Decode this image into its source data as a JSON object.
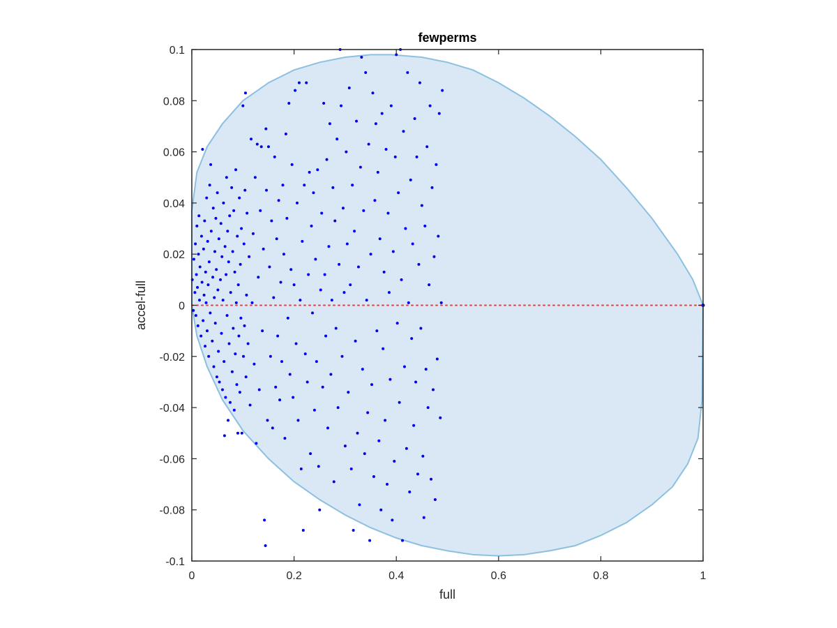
{
  "chart_data": {
    "type": "scatter",
    "title": "fewperms",
    "xlabel": "full",
    "ylabel": "accel-full",
    "xlim": [
      0,
      1
    ],
    "ylim": [
      -0.1,
      0.1
    ],
    "x_ticks": [
      0,
      0.2,
      0.4,
      0.6,
      0.8,
      1
    ],
    "x_tick_labels": [
      "0",
      "0.2",
      "0.4",
      "0.6",
      "0.8",
      "1"
    ],
    "y_ticks": [
      -0.1,
      -0.08,
      -0.06,
      -0.04,
      -0.02,
      0,
      0.02,
      0.04,
      0.06,
      0.08,
      0.1
    ],
    "y_tick_labels": [
      "-0.1",
      "-0.08",
      "-0.06",
      "-0.04",
      "-0.02",
      "0",
      "0.02",
      "0.04",
      "0.06",
      "0.08",
      "0.1"
    ],
    "grid": false,
    "legend": "none",
    "colors": {
      "points": "#0000ee",
      "region_fill": "#d9e8f4",
      "region_stroke": "#8cc0e0",
      "reference_line": "#ff3333",
      "axes": "#262626"
    },
    "reference_line": {
      "y": 0,
      "style": "dotted"
    },
    "region_boundary": [
      [
        0,
        0.037
      ],
      [
        0.01,
        0.052
      ],
      [
        0.03,
        0.062
      ],
      [
        0.06,
        0.071
      ],
      [
        0.1,
        0.08
      ],
      [
        0.15,
        0.087
      ],
      [
        0.2,
        0.092
      ],
      [
        0.25,
        0.095
      ],
      [
        0.3,
        0.097
      ],
      [
        0.35,
        0.098
      ],
      [
        0.39,
        0.098
      ],
      [
        0.45,
        0.097
      ],
      [
        0.5,
        0.095
      ],
      [
        0.55,
        0.092
      ],
      [
        0.6,
        0.087
      ],
      [
        0.65,
        0.081
      ],
      [
        0.7,
        0.074
      ],
      [
        0.75,
        0.066
      ],
      [
        0.8,
        0.057
      ],
      [
        0.85,
        0.046
      ],
      [
        0.9,
        0.034
      ],
      [
        0.95,
        0.02
      ],
      [
        0.98,
        0.01
      ],
      [
        1,
        0
      ],
      [
        0.998,
        -0.037
      ],
      [
        0.99,
        -0.052
      ],
      [
        0.97,
        -0.062
      ],
      [
        0.94,
        -0.071
      ],
      [
        0.9,
        -0.078
      ],
      [
        0.85,
        -0.085
      ],
      [
        0.8,
        -0.09
      ],
      [
        0.75,
        -0.094
      ],
      [
        0.7,
        -0.096
      ],
      [
        0.65,
        -0.0975
      ],
      [
        0.6,
        -0.098
      ],
      [
        0.55,
        -0.0975
      ],
      [
        0.5,
        -0.096
      ],
      [
        0.45,
        -0.094
      ],
      [
        0.4,
        -0.091
      ],
      [
        0.35,
        -0.087
      ],
      [
        0.3,
        -0.082
      ],
      [
        0.25,
        -0.076
      ],
      [
        0.2,
        -0.069
      ],
      [
        0.15,
        -0.06
      ],
      [
        0.1,
        -0.049
      ],
      [
        0.06,
        -0.037
      ],
      [
        0.03,
        -0.024
      ],
      [
        0.01,
        -0.012
      ],
      [
        0,
        0
      ]
    ],
    "points": [
      [
        0.001,
        0.01
      ],
      [
        0.003,
        -0.002
      ],
      [
        0.004,
        0.018
      ],
      [
        0.006,
        0.005
      ],
      [
        0.007,
        0.024
      ],
      [
        0.008,
        -0.004
      ],
      [
        0.009,
        0.012
      ],
      [
        0.01,
        0.031
      ],
      [
        0.011,
        0.007
      ],
      [
        0.012,
        -0.008
      ],
      [
        0.013,
        0.02
      ],
      [
        0.014,
        0.035
      ],
      [
        0.015,
        0.002
      ],
      [
        0.016,
        0.015
      ],
      [
        0.018,
        -0.012
      ],
      [
        0.019,
        0.027
      ],
      [
        0.02,
        0.009
      ],
      [
        0.021,
        0.061
      ],
      [
        0.022,
        -0.006
      ],
      [
        0.023,
        0.022
      ],
      [
        0.024,
        0.004
      ],
      [
        0.025,
        0.033
      ],
      [
        0.026,
        -0.016
      ],
      [
        0.027,
        0.013
      ],
      [
        0.028,
        0.001
      ],
      [
        0.029,
        0.042
      ],
      [
        0.03,
        -0.01
      ],
      [
        0.031,
        0.025
      ],
      [
        0.032,
        0.008
      ],
      [
        0.033,
        -0.02
      ],
      [
        0.034,
        0.017
      ],
      [
        0.035,
        0.047
      ],
      [
        0.036,
        -0.003
      ],
      [
        0.037,
        0.055
      ],
      [
        0.038,
        0.029
      ],
      [
        0.04,
        -0.014
      ],
      [
        0.041,
        0.011
      ],
      [
        0.042,
        0.038
      ],
      [
        0.043,
        -0.024
      ],
      [
        0.044,
        0.003
      ],
      [
        0.045,
        0.021
      ],
      [
        0.046,
        -0.007
      ],
      [
        0.047,
        0.034
      ],
      [
        0.048,
        0.014
      ],
      [
        0.049,
        -0.028
      ],
      [
        0.05,
        0.044
      ],
      [
        0.051,
        0.006
      ],
      [
        0.052,
        -0.018
      ],
      [
        0.053,
        0.026
      ],
      [
        0.054,
        -0.03
      ],
      [
        0.056,
        0.01
      ],
      [
        0.057,
        0.032
      ],
      [
        0.058,
        -0.011
      ],
      [
        0.059,
        0.019
      ],
      [
        0.06,
        -0.033
      ],
      [
        0.061,
        0.002
      ],
      [
        0.062,
        0.04
      ],
      [
        0.063,
        -0.022
      ],
      [
        0.064,
        -0.051
      ],
      [
        0.065,
        0.023
      ],
      [
        0.066,
        -0.036
      ],
      [
        0.067,
        0.012
      ],
      [
        0.068,
        0.05
      ],
      [
        0.069,
        -0.004
      ],
      [
        0.07,
        0.029
      ],
      [
        0.071,
        -0.045
      ],
      [
        0.072,
        0.017
      ],
      [
        0.073,
        -0.015
      ],
      [
        0.074,
        0.035
      ],
      [
        0.075,
        -0.038
      ],
      [
        0.076,
        0.005
      ],
      [
        0.078,
        0.046
      ],
      [
        0.079,
        -0.026
      ],
      [
        0.08,
        0.021
      ],
      [
        0.081,
        -0.009
      ],
      [
        0.082,
        0.037
      ],
      [
        0.083,
        -0.041
      ],
      [
        0.084,
        0.013
      ],
      [
        0.085,
        -0.019
      ],
      [
        0.086,
        0.053
      ],
      [
        0.087,
        0.001
      ],
      [
        0.088,
        -0.031
      ],
      [
        0.089,
        0.027
      ],
      [
        0.09,
        -0.05
      ],
      [
        0.091,
        0.008
      ],
      [
        0.092,
        -0.012
      ],
      [
        0.093,
        0.042
      ],
      [
        0.094,
        -0.034
      ],
      [
        0.095,
        0.016
      ],
      [
        0.096,
        -0.005
      ],
      [
        0.097,
        0.03
      ],
      [
        0.098,
        -0.05
      ],
      [
        0.1,
        0.078
      ],
      [
        0.101,
        -0.02
      ],
      [
        0.102,
        0.024
      ],
      [
        0.103,
        -0.008
      ],
      [
        0.104,
        0.045
      ],
      [
        0.105,
        0.083
      ],
      [
        0.106,
        -0.028
      ],
      [
        0.107,
        0.004
      ],
      [
        0.108,
        0.036
      ],
      [
        0.11,
        -0.015
      ],
      [
        0.112,
        0.019
      ],
      [
        0.114,
        -0.039
      ],
      [
        0.116,
        0.065
      ],
      [
        0.118,
        0.001
      ],
      [
        0.12,
        0.028
      ],
      [
        0.122,
        -0.023
      ],
      [
        0.124,
        0.05
      ],
      [
        0.126,
        -0.054
      ],
      [
        0.128,
        0.063
      ],
      [
        0.13,
        0.011
      ],
      [
        0.132,
        -0.033
      ],
      [
        0.134,
        0.037
      ],
      [
        0.136,
        0.062
      ],
      [
        0.138,
        -0.01
      ],
      [
        0.14,
        0.022
      ],
      [
        0.142,
        -0.084
      ],
      [
        0.144,
        -0.094
      ],
      [
        0.145,
        0.069
      ],
      [
        0.146,
        0.045
      ],
      [
        0.148,
        -0.045
      ],
      [
        0.15,
        0.062
      ],
      [
        0.152,
        0.015
      ],
      [
        0.154,
        -0.02
      ],
      [
        0.156,
        0.033
      ],
      [
        0.158,
        -0.048
      ],
      [
        0.16,
        0.003
      ],
      [
        0.162,
        0.058
      ],
      [
        0.164,
        -0.032
      ],
      [
        0.166,
        0.026
      ],
      [
        0.168,
        -0.012
      ],
      [
        0.17,
        0.041
      ],
      [
        0.172,
        -0.037
      ],
      [
        0.174,
        0.009
      ],
      [
        0.176,
        -0.022
      ],
      [
        0.178,
        0.047
      ],
      [
        0.18,
        0.02
      ],
      [
        0.182,
        -0.052
      ],
      [
        0.184,
        0.067
      ],
      [
        0.186,
        0.034
      ],
      [
        0.188,
        -0.005
      ],
      [
        0.19,
        0.079
      ],
      [
        0.192,
        -0.027
      ],
      [
        0.194,
        0.014
      ],
      [
        0.196,
        0.055
      ],
      [
        0.198,
        -0.036
      ],
      [
        0.2,
        0.008
      ],
      [
        0.202,
        0.084
      ],
      [
        0.204,
        -0.015
      ],
      [
        0.206,
        0.04
      ],
      [
        0.208,
        -0.045
      ],
      [
        0.21,
        0.087
      ],
      [
        0.212,
        0.002
      ],
      [
        0.214,
        -0.064
      ],
      [
        0.216,
        0.025
      ],
      [
        0.218,
        -0.088
      ],
      [
        0.22,
        0.047
      ],
      [
        0.222,
        -0.019
      ],
      [
        0.224,
        0.087
      ],
      [
        0.226,
        -0.03
      ],
      [
        0.228,
        0.012
      ],
      [
        0.23,
        0.052
      ],
      [
        0.232,
        -0.058
      ],
      [
        0.234,
        0.031
      ],
      [
        0.236,
        -0.003
      ],
      [
        0.238,
        0.044
      ],
      [
        0.24,
        -0.041
      ],
      [
        0.242,
        0.018
      ],
      [
        0.244,
        -0.022
      ],
      [
        0.246,
        0.053
      ],
      [
        0.248,
        -0.063
      ],
      [
        0.25,
        -0.08
      ],
      [
        0.252,
        0.006
      ],
      [
        0.254,
        0.036
      ],
      [
        0.256,
        -0.032
      ],
      [
        0.258,
        0.079
      ],
      [
        0.26,
        0.012
      ],
      [
        0.262,
        -0.012
      ],
      [
        0.264,
        0.057
      ],
      [
        0.266,
        -0.048
      ],
      [
        0.268,
        0.023
      ],
      [
        0.27,
        0.071
      ],
      [
        0.272,
        -0.027
      ],
      [
        0.274,
        0.002
      ],
      [
        0.276,
        0.046
      ],
      [
        0.278,
        -0.069
      ],
      [
        0.28,
        0.033
      ],
      [
        0.282,
        -0.009
      ],
      [
        0.284,
        0.065
      ],
      [
        0.286,
        -0.04
      ],
      [
        0.288,
        0.016
      ],
      [
        0.29,
        0.1
      ],
      [
        0.292,
        0.078
      ],
      [
        0.294,
        -0.02
      ],
      [
        0.296,
        0.038
      ],
      [
        0.298,
        0.005
      ],
      [
        0.3,
        -0.055
      ],
      [
        0.302,
        0.06
      ],
      [
        0.304,
        0.024
      ],
      [
        0.306,
        -0.034
      ],
      [
        0.308,
        0.085
      ],
      [
        0.31,
        0.008
      ],
      [
        0.312,
        -0.064
      ],
      [
        0.314,
        0.047
      ],
      [
        0.316,
        -0.088
      ],
      [
        0.318,
        0.029
      ],
      [
        0.32,
        -0.014
      ],
      [
        0.322,
        0.072
      ],
      [
        0.324,
        -0.05
      ],
      [
        0.326,
        0.015
      ],
      [
        0.328,
        -0.078
      ],
      [
        0.33,
        0.054
      ],
      [
        0.332,
        0.097
      ],
      [
        0.334,
        -0.025
      ],
      [
        0.336,
        0.037
      ],
      [
        0.338,
        -0.058
      ],
      [
        0.34,
        0.091
      ],
      [
        0.342,
        0.002
      ],
      [
        0.344,
        -0.042
      ],
      [
        0.346,
        0.063
      ],
      [
        0.348,
        -0.092
      ],
      [
        0.35,
        0.02
      ],
      [
        0.352,
        -0.031
      ],
      [
        0.354,
        0.083
      ],
      [
        0.356,
        -0.067
      ],
      [
        0.358,
        0.041
      ],
      [
        0.36,
        0.071
      ],
      [
        0.362,
        -0.01
      ],
      [
        0.364,
        0.052
      ],
      [
        0.366,
        -0.053
      ],
      [
        0.368,
        0.026
      ],
      [
        0.37,
        -0.08
      ],
      [
        0.372,
        0.075
      ],
      [
        0.374,
        -0.017
      ],
      [
        0.376,
        0.013
      ],
      [
        0.378,
        -0.045
      ],
      [
        0.38,
        0.061
      ],
      [
        0.382,
        -0.07
      ],
      [
        0.384,
        0.036
      ],
      [
        0.386,
        0.005
      ],
      [
        0.388,
        -0.029
      ],
      [
        0.39,
        0.078
      ],
      [
        0.392,
        -0.084
      ],
      [
        0.394,
        0.021
      ],
      [
        0.396,
        -0.061
      ],
      [
        0.398,
        0.058
      ],
      [
        0.4,
        0.098
      ],
      [
        0.402,
        -0.007
      ],
      [
        0.404,
        0.044
      ],
      [
        0.406,
        -0.038
      ],
      [
        0.408,
        0.1
      ],
      [
        0.41,
        0.01
      ],
      [
        0.412,
        -0.092
      ],
      [
        0.414,
        0.068
      ],
      [
        0.416,
        -0.024
      ],
      [
        0.418,
        0.03
      ],
      [
        0.42,
        -0.056
      ],
      [
        0.422,
        0.091
      ],
      [
        0.424,
        0.001
      ],
      [
        0.426,
        -0.073
      ],
      [
        0.428,
        0.049
      ],
      [
        0.43,
        -0.013
      ],
      [
        0.432,
        0.024
      ],
      [
        0.434,
        -0.047
      ],
      [
        0.436,
        0.073
      ],
      [
        0.438,
        -0.03
      ],
      [
        0.44,
        0.058
      ],
      [
        0.442,
        -0.066
      ],
      [
        0.444,
        0.016
      ],
      [
        0.446,
        0.087
      ],
      [
        0.448,
        -0.009
      ],
      [
        0.45,
        0.039
      ],
      [
        0.452,
        -0.059
      ],
      [
        0.454,
        -0.083
      ],
      [
        0.456,
        0.031
      ],
      [
        0.458,
        -0.025
      ],
      [
        0.46,
        0.062
      ],
      [
        0.462,
        -0.04
      ],
      [
        0.464,
        0.008
      ],
      [
        0.466,
        0.078
      ],
      [
        0.468,
        -0.068
      ],
      [
        0.47,
        0.046
      ],
      [
        0.472,
        -0.033
      ],
      [
        0.474,
        0.019
      ],
      [
        0.476,
        -0.076
      ],
      [
        0.478,
        0.055
      ],
      [
        0.48,
        -0.021
      ],
      [
        0.482,
        0.027
      ],
      [
        0.484,
        0.075
      ],
      [
        0.486,
        -0.044
      ],
      [
        0.488,
        0.001
      ],
      [
        0.49,
        0.084
      ]
    ]
  }
}
